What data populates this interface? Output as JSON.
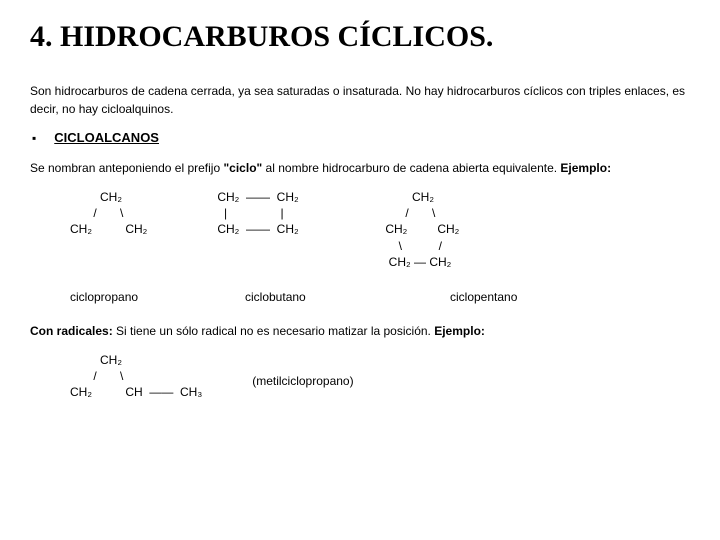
{
  "title": "4. HIDROCARBUROS CÍCLICOS.",
  "intro": "Son hidrocarburos de cadena cerrada, ya sea saturadas o insaturada. No hay hidrocarburos cíclicos con triples enlaces, es decir, no hay cicloalquinos.",
  "bullet": "▪",
  "section": "CICLOALCANOS",
  "desc_a": "Se nombran anteponiendo el prefijo ",
  "desc_b": "\"ciclo\"",
  "desc_c": " al nombre hidrocarburo de cadena abierta equivalente. ",
  "desc_d": "Ejemplo:",
  "structures": {
    "cyclopropane": "         CH₂\n       /       \\\nCH₂          CH₂",
    "cyclobutane": "CH₂  ——  CH₂\n  |                |\nCH₂  ——  CH₂",
    "cyclopentane": "             CH₂\n           /       \\\n     CH₂         CH₂\n         \\           /\n      CH₂ — CH₂"
  },
  "labels": {
    "cyclopropane": "ciclopropano",
    "cyclobutane": "ciclobutano",
    "cyclopentane": "ciclopentano"
  },
  "radicals_a": "Con radicales:",
  "radicals_b": " Si tiene un sólo radical no es necesario matizar la posición. ",
  "radicals_c": "Ejemplo:",
  "rad_struct": "         CH₂\n       /       \\\nCH₂          CH  ——  CH₃",
  "rad_label": "(metilciclopropano)"
}
